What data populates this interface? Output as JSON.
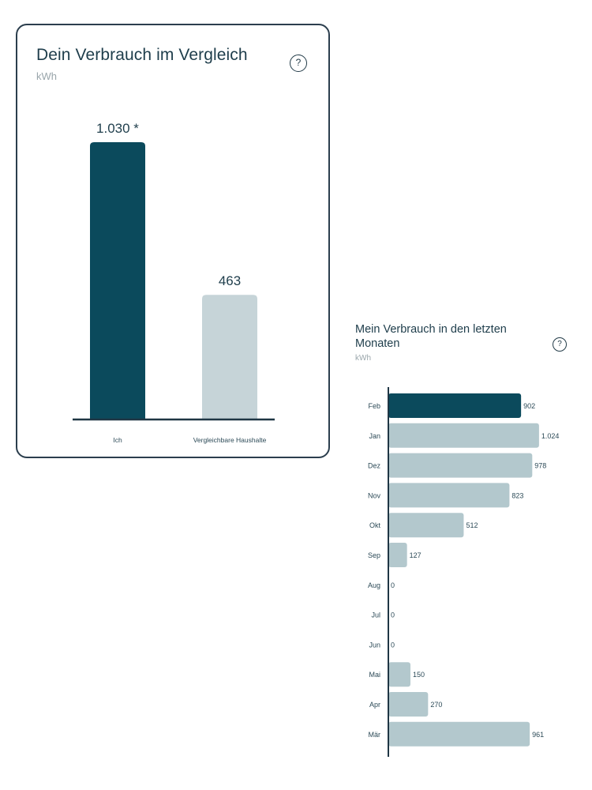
{
  "comparison": {
    "title": "Dein Verbrauch im Vergleich",
    "unit": "kWh",
    "help_label": "?"
  },
  "monthly": {
    "title_line1": "Mein Verbrauch in den letzten",
    "title_line2": "Monaten",
    "unit": "kWh",
    "help_label": "?"
  },
  "colors": {
    "highlight": "#0b4a5c",
    "muted": "#b3c8cd",
    "axis": "#1f3644",
    "text": "#1e3d4b"
  },
  "chart_data": [
    {
      "type": "bar",
      "orientation": "vertical",
      "categories": [
        "Ich",
        "Vergleichbare Haushalte"
      ],
      "values": [
        1030,
        463
      ],
      "value_labels": [
        "1.030 *",
        "463"
      ],
      "ylim": [
        0,
        1100
      ],
      "grid": false
    },
    {
      "type": "bar",
      "orientation": "horizontal",
      "categories": [
        "Feb",
        "Jan",
        "Dez",
        "Nov",
        "Okt",
        "Sep",
        "Aug",
        "Jul",
        "Jun",
        "Mai",
        "Apr",
        "Mär"
      ],
      "values": [
        902,
        1024,
        978,
        823,
        512,
        127,
        0,
        0,
        0,
        150,
        270,
        961
      ],
      "value_labels": [
        "902",
        "1.024",
        "978",
        "823",
        "512",
        "127",
        "0",
        "0",
        "0",
        "150",
        "270",
        "961"
      ],
      "highlight_index": 0,
      "xlim": [
        0,
        1030
      ],
      "grid": false
    }
  ]
}
